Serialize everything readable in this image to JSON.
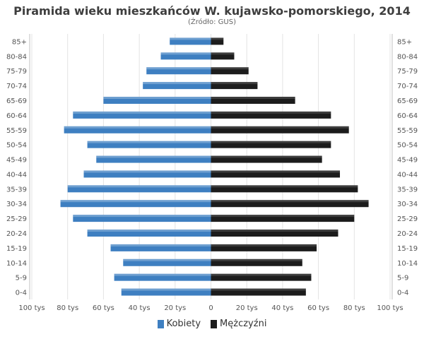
{
  "chart_data": {
    "type": "bar",
    "orientation": "horizontal",
    "title": "Piramida wieku mieszkańców W. kujawsko-pomorskiego, 2014",
    "subtitle": "(Źródło: GUS)",
    "categories": [
      "85+",
      "80-84",
      "75-79",
      "70-74",
      "65-69",
      "60-64",
      "55-59",
      "50-54",
      "45-49",
      "40-44",
      "35-39",
      "30-34",
      "25-29",
      "20-24",
      "15-19",
      "10-14",
      "5-9",
      "0-4"
    ],
    "series": [
      {
        "name": "Kobiety",
        "side": "left",
        "color": "#3e7fc1",
        "values": [
          23,
          28,
          36,
          38,
          60,
          77,
          82,
          69,
          64,
          71,
          80,
          84,
          77,
          69,
          56,
          49,
          54,
          50
        ]
      },
      {
        "name": "Mężczyźni",
        "side": "right",
        "color": "#1c1c1c",
        "values": [
          7,
          13,
          21,
          26,
          47,
          67,
          77,
          67,
          62,
          72,
          82,
          88,
          80,
          71,
          59,
          51,
          56,
          53
        ]
      }
    ],
    "xlim": [
      -100,
      100
    ],
    "x_ticks": [
      "100 tys",
      "80 tys",
      "60 tys",
      "40 tys",
      "20 tys",
      "0",
      "20 tys",
      "40 tys",
      "60 tys",
      "80 tys",
      "100 tys"
    ],
    "grid": true,
    "legend_position": "bottom"
  }
}
